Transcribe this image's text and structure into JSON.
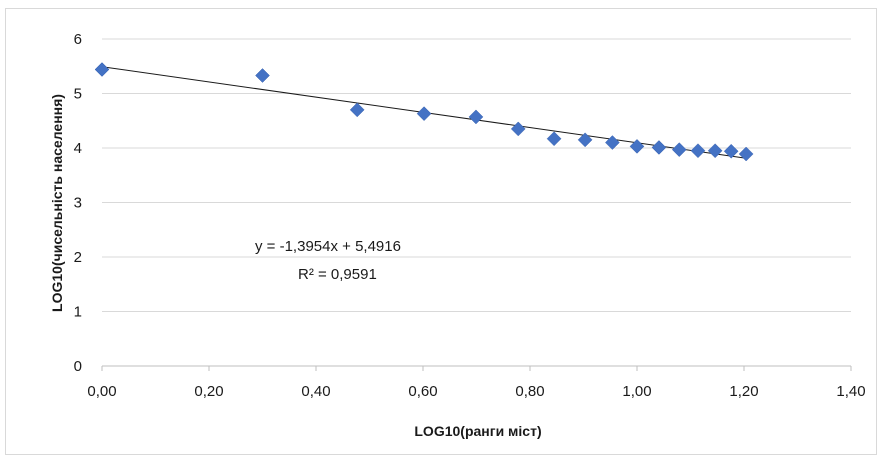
{
  "chart_data": {
    "type": "scatter",
    "xlabel": "LOG10(ранги міст)",
    "ylabel": "LOG10(чисельність населення)",
    "xlim": [
      0,
      1.4
    ],
    "ylim": [
      0,
      6
    ],
    "x_ticks": [
      "0,00",
      "0,20",
      "0,40",
      "0,60",
      "0,80",
      "1,00",
      "1,20",
      "1,40"
    ],
    "y_ticks": [
      "0",
      "1",
      "2",
      "3",
      "4",
      "5",
      "6"
    ],
    "grid": "horizontal",
    "marker_color": "#4472c4",
    "trendline_color": "#1a1a1a",
    "series": [
      {
        "x": [
          0.0,
          0.3,
          0.477,
          0.602,
          0.699,
          0.778,
          0.845,
          0.903,
          0.954,
          1.0,
          1.041,
          1.079,
          1.114,
          1.146,
          1.176,
          1.204
        ],
        "y": [
          5.44,
          5.33,
          4.7,
          4.63,
          4.57,
          4.35,
          4.17,
          4.15,
          4.1,
          4.03,
          4.01,
          3.97,
          3.95,
          3.95,
          3.94,
          3.89
        ]
      }
    ],
    "trendline": {
      "slope": -1.3954,
      "intercept": 5.4916,
      "x_range": [
        0,
        1.204
      ]
    },
    "annotations": {
      "equation": "y = -1,3954x + 5,4916",
      "r_squared": "R² = 0,9591"
    }
  }
}
